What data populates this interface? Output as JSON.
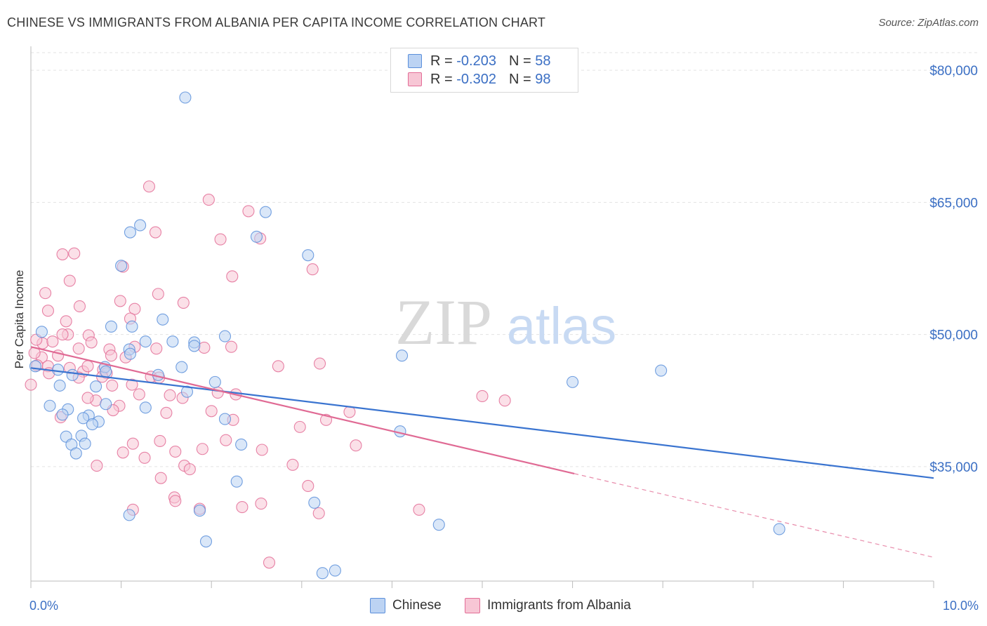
{
  "title": "CHINESE VS IMMIGRANTS FROM ALBANIA PER CAPITA INCOME CORRELATION CHART",
  "source": "Source: ZipAtlas.com",
  "watermark": {
    "zip": "ZIP",
    "atlas": "atlas"
  },
  "legend": {
    "rows": [
      {
        "r_label": "R = ",
        "r_value": "-0.203",
        "n_label": "N = ",
        "n_value": "58",
        "color": "#9ec0ef"
      },
      {
        "r_label": "R = ",
        "r_value": "-0.302",
        "n_label": "N = ",
        "n_value": "98",
        "color": "#f4b4c8"
      }
    ]
  },
  "bottom_legend": {
    "chinese": "Chinese",
    "albania": "Immigrants from Albania"
  },
  "chart_data": {
    "type": "scatter",
    "title": "CHINESE VS IMMIGRANTS FROM ALBANIA PER CAPITA INCOME CORRELATION CHART",
    "xlabel": "",
    "ylabel": "Per Capita Income",
    "xlim": [
      0,
      10
    ],
    "ylim": [
      22000,
      82000
    ],
    "x_tick_labels": [
      "0.0%",
      "10.0%"
    ],
    "y_ticks": [
      35000,
      50000,
      65000,
      80000
    ],
    "y_tick_labels": [
      "$35,000",
      "$50,000",
      "$65,000",
      "$80,000"
    ],
    "grid": true,
    "legend_position": "top-center",
    "series": [
      {
        "name": "Chinese",
        "color": "#5b8fdb",
        "fill": "#bcd3f3",
        "trend": {
          "x": [
            0,
            10
          ],
          "y": [
            46200,
            33700
          ]
        },
        "points": [
          [
            1.71,
            76900
          ],
          [
            1.21,
            62400
          ],
          [
            1.1,
            61600
          ],
          [
            2.6,
            63900
          ],
          [
            2.5,
            61100
          ],
          [
            3.07,
            59000
          ],
          [
            1.0,
            57800
          ],
          [
            0.12,
            50300
          ],
          [
            0.89,
            50900
          ],
          [
            1.12,
            50900
          ],
          [
            1.46,
            51700
          ],
          [
            1.27,
            49200
          ],
          [
            1.57,
            49200
          ],
          [
            1.81,
            49100
          ],
          [
            2.15,
            49800
          ],
          [
            1.09,
            48300
          ],
          [
            1.1,
            47800
          ],
          [
            0.3,
            46000
          ],
          [
            0.46,
            45400
          ],
          [
            0.82,
            46300
          ],
          [
            0.83,
            45800
          ],
          [
            1.67,
            46300
          ],
          [
            2.04,
            44600
          ],
          [
            1.41,
            45400
          ],
          [
            1.73,
            43500
          ],
          [
            0.32,
            44200
          ],
          [
            0.72,
            44100
          ],
          [
            0.83,
            42100
          ],
          [
            1.27,
            41700
          ],
          [
            0.41,
            41500
          ],
          [
            0.21,
            41900
          ],
          [
            0.64,
            40800
          ],
          [
            0.58,
            40500
          ],
          [
            0.35,
            40900
          ],
          [
            0.75,
            40100
          ],
          [
            2.15,
            40400
          ],
          [
            0.39,
            38400
          ],
          [
            0.56,
            38500
          ],
          [
            0.45,
            37500
          ],
          [
            0.6,
            37600
          ],
          [
            2.33,
            37500
          ],
          [
            0.5,
            36500
          ],
          [
            0.68,
            39800
          ],
          [
            4.11,
            47600
          ],
          [
            4.09,
            39000
          ],
          [
            6.0,
            44600
          ],
          [
            6.98,
            45900
          ],
          [
            2.28,
            33300
          ],
          [
            1.09,
            29500
          ],
          [
            1.87,
            30000
          ],
          [
            1.94,
            26500
          ],
          [
            3.14,
            30900
          ],
          [
            4.52,
            28400
          ],
          [
            3.23,
            22900
          ],
          [
            3.37,
            23200
          ],
          [
            8.29,
            27900
          ],
          [
            0.05,
            46400
          ],
          [
            1.81,
            48700
          ]
        ]
      },
      {
        "name": "Immigrants from Albania",
        "color": "#e36d97",
        "fill": "#f7c6d5",
        "trend": {
          "x": [
            0,
            6.02
          ],
          "y": [
            48600,
            34200
          ]
        },
        "trend_dashed": {
          "x": [
            6.02,
            10
          ],
          "y": [
            34200,
            24700
          ]
        },
        "points": [
          [
            1.31,
            66800
          ],
          [
            1.97,
            65300
          ],
          [
            2.41,
            64000
          ],
          [
            2.1,
            60800
          ],
          [
            2.54,
            60900
          ],
          [
            1.38,
            61600
          ],
          [
            0.35,
            59100
          ],
          [
            0.48,
            59200
          ],
          [
            1.02,
            57700
          ],
          [
            3.12,
            57400
          ],
          [
            2.23,
            56600
          ],
          [
            0.43,
            56100
          ],
          [
            0.16,
            54700
          ],
          [
            1.41,
            54600
          ],
          [
            0.54,
            53200
          ],
          [
            0.99,
            53800
          ],
          [
            1.69,
            53600
          ],
          [
            1.15,
            52900
          ],
          [
            0.19,
            52700
          ],
          [
            0.39,
            51500
          ],
          [
            1.1,
            51800
          ],
          [
            0.41,
            50000
          ],
          [
            0.35,
            50000
          ],
          [
            0.64,
            49900
          ],
          [
            0.67,
            49100
          ],
          [
            0.13,
            49000
          ],
          [
            0.06,
            49400
          ],
          [
            0.24,
            49200
          ],
          [
            0.3,
            47600
          ],
          [
            0.12,
            47400
          ],
          [
            0.53,
            48400
          ],
          [
            0.87,
            48300
          ],
          [
            1.15,
            48600
          ],
          [
            1.39,
            48400
          ],
          [
            1.92,
            48500
          ],
          [
            2.22,
            48600
          ],
          [
            0.89,
            47600
          ],
          [
            1.05,
            47400
          ],
          [
            0.07,
            46500
          ],
          [
            0.19,
            46400
          ],
          [
            0.43,
            46200
          ],
          [
            0.58,
            45800
          ],
          [
            0.63,
            46400
          ],
          [
            0.8,
            46000
          ],
          [
            0.84,
            45600
          ],
          [
            0.2,
            45600
          ],
          [
            0.53,
            45100
          ],
          [
            0.79,
            45200
          ],
          [
            1.33,
            45200
          ],
          [
            1.42,
            45100
          ],
          [
            1.12,
            44300
          ],
          [
            2.74,
            46400
          ],
          [
            3.2,
            46700
          ],
          [
            0.9,
            44200
          ],
          [
            1.2,
            43200
          ],
          [
            1.54,
            43100
          ],
          [
            1.68,
            42800
          ],
          [
            2.07,
            43400
          ],
          [
            2.27,
            43200
          ],
          [
            0.72,
            42500
          ],
          [
            0.63,
            42800
          ],
          [
            0.98,
            41900
          ],
          [
            1.5,
            41100
          ],
          [
            2.0,
            41300
          ],
          [
            2.24,
            40300
          ],
          [
            3.53,
            41200
          ],
          [
            0.33,
            40600
          ],
          [
            0.91,
            41400
          ],
          [
            1.13,
            37600
          ],
          [
            1.43,
            37900
          ],
          [
            1.6,
            36700
          ],
          [
            1.9,
            37000
          ],
          [
            2.16,
            38000
          ],
          [
            2.56,
            36900
          ],
          [
            2.98,
            39500
          ],
          [
            3.27,
            40300
          ],
          [
            3.6,
            37400
          ],
          [
            5.0,
            43000
          ],
          [
            5.25,
            42500
          ],
          [
            0.73,
            35100
          ],
          [
            1.02,
            36600
          ],
          [
            1.26,
            36000
          ],
          [
            1.7,
            35100
          ],
          [
            1.76,
            34700
          ],
          [
            2.9,
            35200
          ],
          [
            1.44,
            33700
          ],
          [
            3.07,
            32800
          ],
          [
            1.59,
            31500
          ],
          [
            1.6,
            31100
          ],
          [
            2.34,
            30400
          ],
          [
            2.55,
            30800
          ],
          [
            1.13,
            30100
          ],
          [
            1.87,
            30200
          ],
          [
            3.19,
            29700
          ],
          [
            4.3,
            30100
          ],
          [
            2.64,
            24100
          ],
          [
            0.0,
            44300
          ],
          [
            0.04,
            47900
          ]
        ]
      }
    ]
  }
}
